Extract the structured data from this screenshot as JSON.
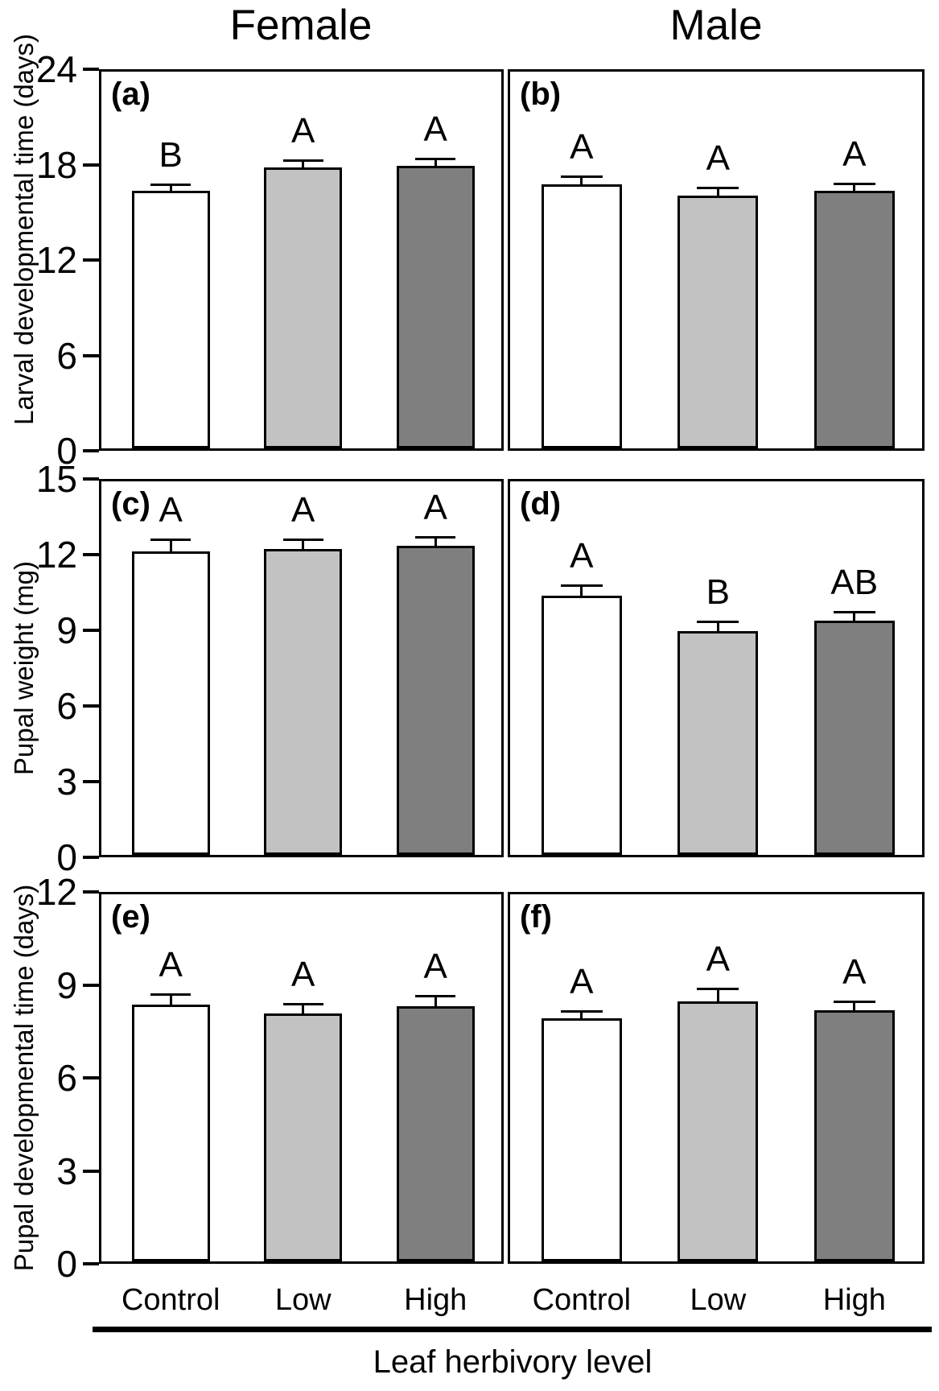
{
  "figure": {
    "column_titles": [
      "Female",
      "Male"
    ],
    "x_axis_title": "Leaf herbivory level",
    "categories": [
      "Control",
      "Low",
      "High"
    ],
    "bar_fill_colors": [
      "#ffffff",
      "#c2c2c2",
      "#7f7f7f"
    ],
    "bar_edge_color": "#000000",
    "background": "#ffffff"
  },
  "chart_data": [
    {
      "type": "bar",
      "panel": "(a)",
      "column": "Female",
      "ylabel": "Larval developmental time (days)",
      "ylim": [
        0,
        24
      ],
      "yticks": [
        0,
        6,
        12,
        18,
        24
      ],
      "categories": [
        "Control",
        "Low",
        "High"
      ],
      "values": [
        16.4,
        17.9,
        18.0
      ],
      "errors": [
        0.45,
        0.5,
        0.5
      ],
      "sig_letters": [
        "B",
        "A",
        "A"
      ]
    },
    {
      "type": "bar",
      "panel": "(b)",
      "column": "Male",
      "ylabel": "Larval developmental time (days)",
      "ylim": [
        0,
        24
      ],
      "yticks": [
        0,
        6,
        12,
        18,
        24
      ],
      "categories": [
        "Control",
        "Low",
        "High"
      ],
      "values": [
        16.8,
        16.1,
        16.4
      ],
      "errors": [
        0.6,
        0.55,
        0.5
      ],
      "sig_letters": [
        "A",
        "A",
        "A"
      ]
    },
    {
      "type": "bar",
      "panel": "(c)",
      "column": "Female",
      "ylabel": "Pupal weight (mg)",
      "ylim": [
        0,
        15
      ],
      "yticks": [
        0,
        3,
        6,
        9,
        12,
        15
      ],
      "categories": [
        "Control",
        "Low",
        "High"
      ],
      "values": [
        12.2,
        12.3,
        12.4
      ],
      "errors": [
        0.5,
        0.4,
        0.4
      ],
      "sig_letters": [
        "A",
        "A",
        "A"
      ]
    },
    {
      "type": "bar",
      "panel": "(d)",
      "column": "Male",
      "ylabel": "Pupal weight (mg)",
      "ylim": [
        0,
        15
      ],
      "yticks": [
        0,
        3,
        6,
        9,
        12,
        15
      ],
      "categories": [
        "Control",
        "Low",
        "High"
      ],
      "values": [
        10.4,
        9.0,
        9.4
      ],
      "errors": [
        0.45,
        0.4,
        0.4
      ],
      "sig_letters": [
        "A",
        "B",
        "AB"
      ]
    },
    {
      "type": "bar",
      "panel": "(e)",
      "column": "Female",
      "ylabel": "Pupal developmental time (days)",
      "ylim": [
        0,
        12
      ],
      "yticks": [
        0,
        3,
        6,
        9,
        12
      ],
      "categories": [
        "Control",
        "Low",
        "High"
      ],
      "values": [
        8.4,
        8.1,
        8.35
      ],
      "errors": [
        0.37,
        0.35,
        0.35
      ],
      "sig_letters": [
        "A",
        "A",
        "A"
      ]
    },
    {
      "type": "bar",
      "panel": "(f)",
      "column": "Male",
      "ylabel": "Pupal developmental time (days)",
      "ylim": [
        0,
        12
      ],
      "yticks": [
        0,
        3,
        6,
        9,
        12
      ],
      "categories": [
        "Control",
        "Low",
        "High"
      ],
      "values": [
        7.95,
        8.5,
        8.2
      ],
      "errors": [
        0.25,
        0.45,
        0.33
      ],
      "sig_letters": [
        "A",
        "A",
        "A"
      ]
    }
  ]
}
